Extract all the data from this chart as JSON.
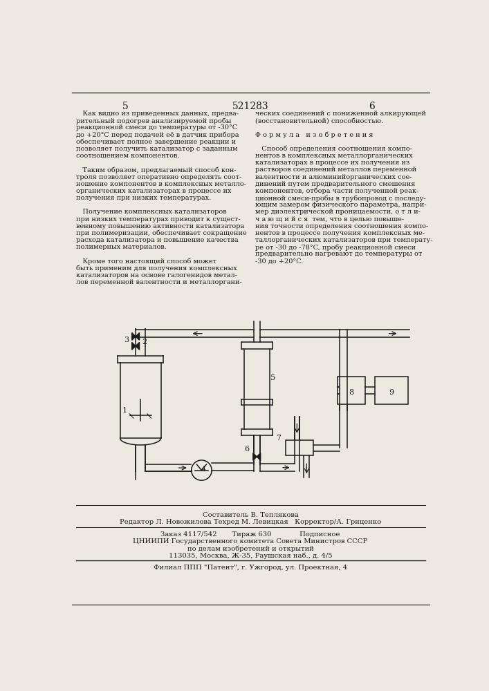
{
  "bg_color": "#ede8e0",
  "page_number_left": "5",
  "page_number_center": "521283",
  "page_number_right": "6",
  "left_text": [
    "   Как видно из приведенных данных, предва-",
    "рительный подогрев анализируемой пробы",
    "реакционной смеси до температуры от -30°C",
    "до +20°C перед подачей её в датчик прибора",
    "обеспечивает полное завершение реакции и",
    "позволяет получить катализатор с заданным",
    "соотношением компонентов.",
    "",
    "   Таким образом, предлагаемый способ кон-",
    "троля позволяет оперативно определять соот-",
    "ношение компонентов в комплексных металло-",
    "органических катализаторах в процессе их",
    "получения при низких температурах.",
    "",
    "   Получение комплексных катализаторов",
    "при низких температурах приводит к сущест-",
    "венному повышению активности катализатора",
    "при полимеризации, обеспечивает сокращение",
    "расхода катализатора и повышение качества",
    "полимерных материалов.",
    "",
    "   Кроме того настоящий способ может",
    "быть применим для получения комплексных",
    "катализаторов на основе галогенидов метал-",
    "лов переменной валентности и металлоргани-"
  ],
  "right_text": [
    "ческих соединений с пониженной алкирующей",
    "(восстановительной) способностью.",
    "",
    "Ф о р м у л а   и з о б р е т е н и я",
    "",
    "   Способ определения соотношения компо-",
    "нентов в комплексных металлорганических",
    "катализаторах в процессе их получения из",
    "растворов соединений металлов переменной",
    "валентности и алюминийорганических сое-",
    "динений путем предварительного смешения",
    "компонентов, отбора части полученной реак-",
    "ционной смеси-пробы в трубопровод с последу-",
    "ющим замером физического параметра, напри-",
    "мер диэлектрической проницаемости, о т л и-",
    "ч а ю щ и й с я  тем, что в целью повыше-",
    "ния точности определения соотношения компо-",
    "нентов в процессе получения комплексных ме-",
    "таллорганических катализаторов при температу-",
    "ре от -30 до -78°C, пробу реакционной смеси",
    "предварительно нагревают до температуры от",
    "-30 до +20°C."
  ],
  "footer_line1": "Составитель В. Теплякова",
  "footer_line2": "Редактор Л. Новожилова Техред М. Левицкая   Корректор/А. Гриценко",
  "footer_line3": "Заказ 4117/542       Тираж 630             Подписное",
  "footer_line4": "ЦНИИПИ Государственного комитета Совета Министров СССР",
  "footer_line5": "по делам изобретений и открытий",
  "footer_line6": "113035, Москва, Ж-35, Раушская наб., д. 4/5",
  "footer_line7": "Филиал ППП \"Патент\", г. Ужгород, ул. Проектная, 4",
  "line_color": "#1a1a1a",
  "text_color": "#1a1a1a"
}
